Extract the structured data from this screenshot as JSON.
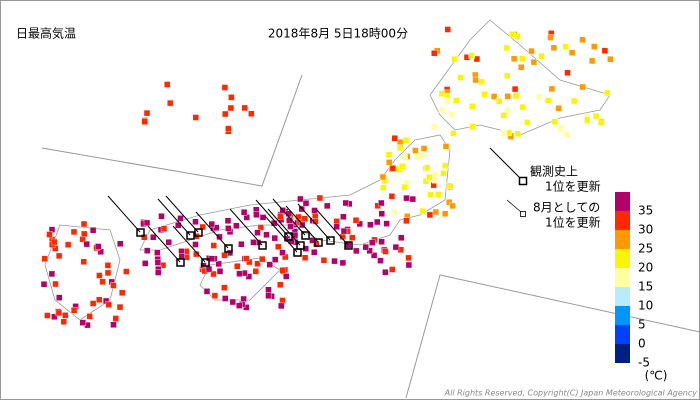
{
  "header": {
    "title": "日最高気温",
    "datetime": "2018年8月 5日18時00分"
  },
  "legend": {
    "record_all_time": [
      "観測史上",
      "1位を更新"
    ],
    "record_month": [
      "8月としての",
      "1位を更新"
    ]
  },
  "colorbar": {
    "labels": [
      "35",
      "30",
      "25",
      "20",
      "15",
      "10",
      "5",
      "0",
      "-5"
    ],
    "colors": [
      "#b4006a",
      "#ff2800",
      "#ff9900",
      "#faf500",
      "#ffffa0",
      "#b9ebff",
      "#0096ff",
      "#0041ff",
      "#002080"
    ],
    "unit": "(℃)"
  },
  "footer": {
    "copyright": "All Rights Reserved, Copyright(C) Japan Meteorological Agency"
  }
}
